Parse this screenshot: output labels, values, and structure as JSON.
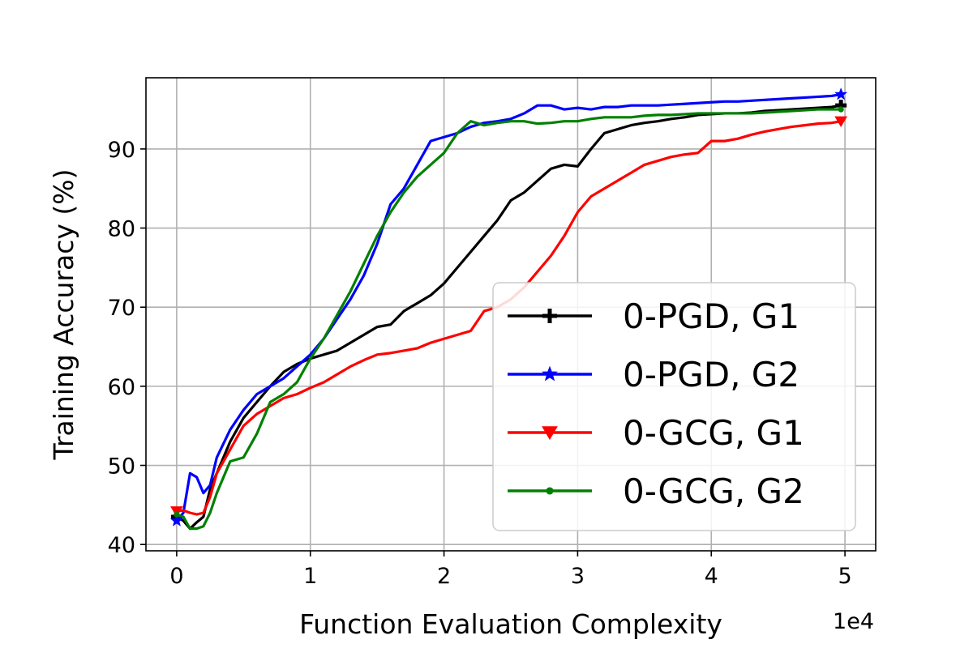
{
  "chart_data": {
    "type": "line",
    "title": "",
    "xlabel": "Function Evaluation Complexity",
    "ylabel": "Training Accuracy (%)",
    "x_offset_label": "1e4",
    "xlim": [
      -0.23,
      5.23
    ],
    "ylim": [
      39.2,
      99.0
    ],
    "xticks": [
      0,
      1,
      2,
      3,
      4,
      5
    ],
    "xtick_labels": [
      "0",
      "1",
      "2",
      "3",
      "4",
      "5"
    ],
    "yticks": [
      40,
      50,
      60,
      70,
      80,
      90
    ],
    "ytick_labels": [
      "40",
      "50",
      "60",
      "70",
      "80",
      "90"
    ],
    "grid": true,
    "legend_position": "lower-right",
    "series": [
      {
        "name": "0-PGD, G1",
        "color": "#000000",
        "marker": "plus",
        "x": [
          0,
          0.05,
          0.1,
          0.15,
          0.2,
          0.25,
          0.3,
          0.4,
          0.5,
          0.6,
          0.7,
          0.8,
          0.9,
          1.0,
          1.1,
          1.2,
          1.3,
          1.4,
          1.5,
          1.6,
          1.7,
          1.8,
          1.9,
          2.0,
          2.1,
          2.2,
          2.3,
          2.4,
          2.5,
          2.6,
          2.7,
          2.8,
          2.9,
          3.0,
          3.1,
          3.2,
          3.3,
          3.4,
          3.5,
          3.6,
          3.7,
          3.8,
          3.9,
          4.0,
          4.1,
          4.2,
          4.3,
          4.4,
          4.5,
          4.6,
          4.7,
          4.8,
          4.9,
          4.97
        ],
        "y": [
          43.5,
          43.0,
          42.0,
          42.8,
          43.5,
          47.0,
          49.0,
          53.0,
          56.0,
          58.0,
          60.0,
          61.8,
          62.8,
          63.5,
          64.0,
          64.5,
          65.5,
          66.5,
          67.5,
          67.8,
          69.5,
          70.5,
          71.5,
          73.0,
          75.0,
          77.0,
          79.0,
          81.0,
          83.5,
          84.5,
          86.0,
          87.5,
          88.0,
          87.8,
          90.0,
          92.0,
          92.5,
          93.0,
          93.3,
          93.5,
          93.8,
          94.0,
          94.3,
          94.4,
          94.5,
          94.5,
          94.6,
          94.8,
          94.9,
          95.0,
          95.1,
          95.2,
          95.3,
          95.5
        ]
      },
      {
        "name": "0-PGD, G2",
        "color": "#0000ff",
        "marker": "star",
        "x": [
          0,
          0.05,
          0.1,
          0.15,
          0.2,
          0.25,
          0.3,
          0.4,
          0.5,
          0.6,
          0.7,
          0.8,
          0.9,
          1.0,
          1.1,
          1.2,
          1.3,
          1.4,
          1.5,
          1.6,
          1.7,
          1.8,
          1.9,
          2.0,
          2.1,
          2.2,
          2.3,
          2.4,
          2.5,
          2.6,
          2.7,
          2.8,
          2.9,
          3.0,
          3.1,
          3.2,
          3.3,
          3.4,
          3.5,
          3.6,
          3.7,
          3.8,
          3.9,
          4.0,
          4.1,
          4.2,
          4.3,
          4.4,
          4.5,
          4.6,
          4.7,
          4.8,
          4.9,
          4.97
        ],
        "y": [
          43.0,
          44.0,
          49.0,
          48.5,
          46.5,
          47.5,
          51.0,
          54.5,
          57.0,
          59.0,
          60.0,
          61.0,
          62.5,
          64.0,
          66.0,
          68.5,
          71.0,
          74.0,
          78.0,
          83.0,
          85.0,
          88.0,
          91.0,
          91.5,
          92.0,
          92.8,
          93.3,
          93.5,
          93.8,
          94.5,
          95.5,
          95.5,
          95.0,
          95.2,
          95.0,
          95.3,
          95.3,
          95.5,
          95.5,
          95.5,
          95.6,
          95.7,
          95.8,
          95.9,
          96.0,
          96.0,
          96.1,
          96.2,
          96.3,
          96.4,
          96.5,
          96.6,
          96.7,
          96.9
        ]
      },
      {
        "name": "0-GCG, G1",
        "color": "#ff0000",
        "marker": "triangle-down",
        "x": [
          0,
          0.05,
          0.1,
          0.15,
          0.2,
          0.25,
          0.3,
          0.4,
          0.5,
          0.6,
          0.7,
          0.8,
          0.9,
          1.0,
          1.1,
          1.2,
          1.3,
          1.4,
          1.5,
          1.6,
          1.7,
          1.8,
          1.9,
          2.0,
          2.1,
          2.2,
          2.3,
          2.4,
          2.5,
          2.6,
          2.7,
          2.8,
          2.9,
          3.0,
          3.1,
          3.2,
          3.3,
          3.4,
          3.5,
          3.6,
          3.7,
          3.8,
          3.9,
          4.0,
          4.1,
          4.2,
          4.3,
          4.4,
          4.5,
          4.6,
          4.7,
          4.8,
          4.9,
          4.97
        ],
        "y": [
          44.2,
          44.3,
          44.0,
          43.8,
          44.0,
          46.0,
          49.0,
          52.0,
          55.0,
          56.5,
          57.5,
          58.5,
          59.0,
          59.8,
          60.5,
          61.5,
          62.5,
          63.3,
          64.0,
          64.2,
          64.5,
          64.8,
          65.5,
          66.0,
          66.5,
          67.0,
          69.5,
          70.0,
          71.0,
          72.5,
          74.5,
          76.5,
          79.0,
          82.0,
          84.0,
          85.0,
          86.0,
          87.0,
          88.0,
          88.5,
          89.0,
          89.3,
          89.5,
          91.0,
          91.0,
          91.3,
          91.8,
          92.2,
          92.5,
          92.8,
          93.0,
          93.2,
          93.3,
          93.5
        ]
      },
      {
        "name": "0-GCG, G2",
        "color": "#008000",
        "marker": "point",
        "x": [
          0,
          0.05,
          0.1,
          0.15,
          0.2,
          0.25,
          0.3,
          0.4,
          0.5,
          0.6,
          0.7,
          0.8,
          0.9,
          1.0,
          1.1,
          1.2,
          1.3,
          1.4,
          1.5,
          1.6,
          1.7,
          1.8,
          1.9,
          2.0,
          2.1,
          2.2,
          2.3,
          2.4,
          2.5,
          2.6,
          2.7,
          2.8,
          2.9,
          3.0,
          3.1,
          3.2,
          3.3,
          3.4,
          3.5,
          3.6,
          3.7,
          3.8,
          3.9,
          4.0,
          4.1,
          4.2,
          4.3,
          4.4,
          4.5,
          4.6,
          4.7,
          4.8,
          4.9,
          4.97
        ],
        "y": [
          43.8,
          43.5,
          42.0,
          42.0,
          42.3,
          44.0,
          46.5,
          50.5,
          51.0,
          54.0,
          58.0,
          59.0,
          60.5,
          63.5,
          66.0,
          69.0,
          72.0,
          75.5,
          79.0,
          82.0,
          84.5,
          86.5,
          88.0,
          89.5,
          92.0,
          93.5,
          93.0,
          93.3,
          93.5,
          93.5,
          93.2,
          93.3,
          93.5,
          93.5,
          93.8,
          94.0,
          94.0,
          94.0,
          94.2,
          94.3,
          94.3,
          94.4,
          94.5,
          94.5,
          94.5,
          94.5,
          94.5,
          94.6,
          94.7,
          94.8,
          94.9,
          95.0,
          95.0,
          95.0
        ]
      }
    ]
  }
}
